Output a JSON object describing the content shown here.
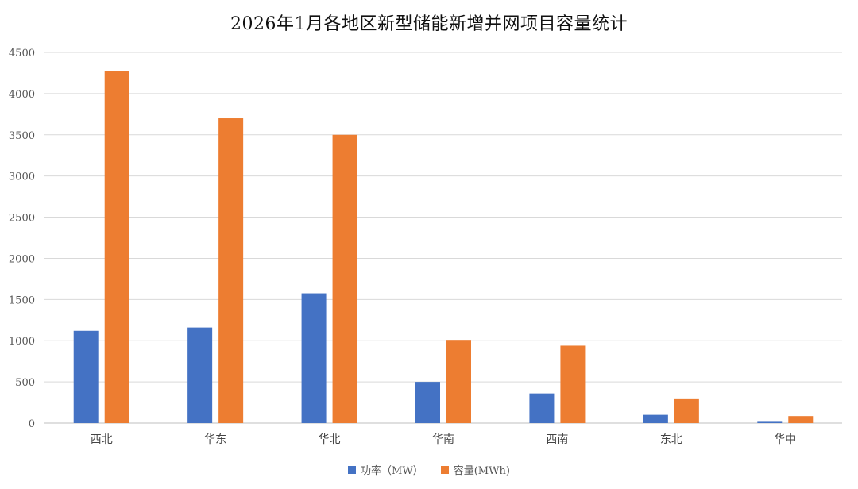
{
  "colors": {
    "power": "#4472C4",
    "capacity": "#ED7D31",
    "grid": "#D9D9D9"
  },
  "chart_data": {
    "type": "bar",
    "title": "2026年1月各地区新型储能新增并网项目容量统计",
    "categories": [
      "西北",
      "华东",
      "华北",
      "华南",
      "西南",
      "东北",
      "华中"
    ],
    "series": [
      {
        "name": "功率（MW）",
        "values": [
          1120,
          1160,
          1575,
          500,
          360,
          100,
          25
        ]
      },
      {
        "name": "容量(MWh)",
        "values": [
          4270,
          3700,
          3500,
          1010,
          940,
          300,
          85
        ]
      }
    ],
    "ylim": [
      0,
      4500
    ],
    "yticks": [
      0,
      500,
      1000,
      1500,
      2000,
      2500,
      3000,
      3500,
      4000,
      4500
    ],
    "grid": true,
    "legend": "bottom"
  }
}
